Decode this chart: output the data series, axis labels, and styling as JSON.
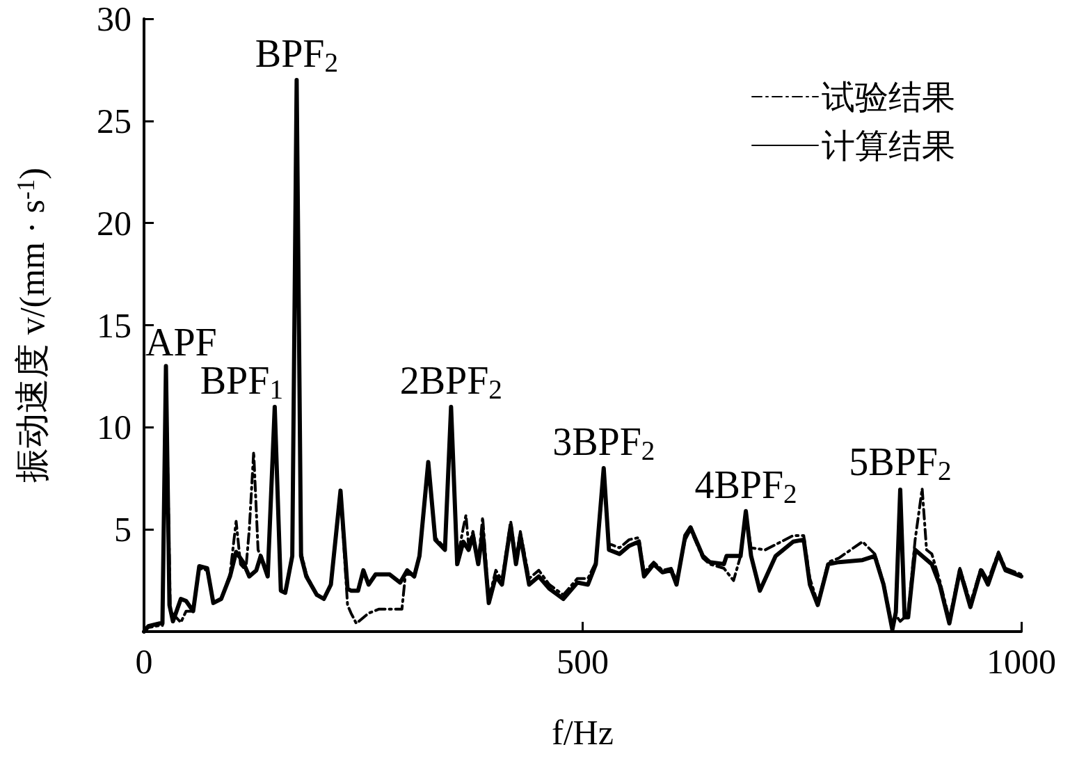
{
  "chart_data": {
    "type": "line",
    "xlabel": "f/Hz",
    "ylabel": "振动速度 v/(mm · s$^{-1}$)",
    "xlim": [
      0,
      1000
    ],
    "xticks": [
      0,
      500,
      1000
    ],
    "ylim": [
      0,
      30
    ],
    "yticks": [
      {
        "value": 0,
        "label": null
      },
      5,
      10,
      15,
      20,
      25,
      30
    ],
    "grid": false,
    "legend": "top right",
    "marker": "none",
    "series": [
      {
        "name": "试验结果",
        "color": "#000000",
        "line_style": "dashed",
        "x": [
          0,
          5,
          18,
          21,
          25,
          30,
          42,
          48,
          56,
          63,
          72,
          79,
          88,
          98,
          105,
          110,
          116,
          120,
          125,
          130,
          135,
          141,
          149,
          156,
          161,
          169,
          174,
          179,
          185,
          197,
          205,
          213,
          224,
          232,
          236,
          242,
          256,
          268,
          294,
          298,
          308,
          314,
          324,
          332,
          343,
          350,
          357,
          364,
          367,
          370,
          375,
          381,
          386,
          393,
          401,
          408,
          418,
          424,
          429,
          439,
          450,
          462,
          478,
          494,
          506,
          515,
          524,
          530,
          542,
          553,
          564,
          570,
          581,
          591,
          601,
          607,
          617,
          623,
          637,
          645,
          661,
          672,
          680,
          686,
          692,
          708,
          740,
          752,
          759,
          768,
          780,
          792,
          819,
          833,
          843,
          853,
          857,
          862,
          867,
          871,
          879,
          887,
          892,
          898,
          907,
          918,
          930,
          942,
          954,
          962,
          974,
          982,
          994,
          1000
        ],
        "values": [
          0,
          0.2,
          0.3,
          0.3,
          12.9,
          1,
          0.45,
          1.0,
          1.0,
          3.1,
          3.0,
          1.4,
          1.6,
          2.8,
          5.4,
          3.3,
          3.0,
          5.0,
          8.8,
          4.0,
          3.5,
          2.9,
          10.8,
          2.1,
          1.9,
          3.7,
          26.8,
          3.9,
          2.8,
          1.8,
          1.6,
          2.3,
          6.8,
          1.3,
          0.9,
          0.4,
          0.9,
          1.1,
          1.1,
          2.8,
          2.8,
          3.7,
          8.2,
          4.6,
          4.1,
          10.8,
          3.5,
          5.1,
          5.7,
          4.2,
          4.9,
          3.4,
          5.6,
          1.6,
          3.0,
          2.5,
          5.4,
          3.5,
          4.9,
          2.6,
          3.0,
          2.3,
          1.8,
          2.6,
          2.6,
          3.4,
          7.6,
          4.3,
          4.1,
          4.5,
          4.6,
          2.9,
          3.4,
          3.0,
          3.1,
          2.5,
          4.5,
          5.0,
          3.6,
          3.3,
          3.1,
          2.5,
          3.7,
          5.8,
          4.1,
          4.0,
          4.7,
          4.7,
          2.6,
          1.4,
          3.4,
          3.6,
          4.4,
          3.8,
          2.4,
          0.2,
          0.8,
          0.5,
          0.7,
          0.9,
          4.5,
          7.0,
          4.0,
          3.8,
          2.5,
          0.6,
          3.1,
          1.4,
          3.1,
          2.5,
          3.9,
          3.1,
          2.9,
          2.8
        ]
      },
      {
        "name": "计算结果",
        "color": "#000000",
        "line_style": "solid",
        "x": [
          0,
          5,
          18,
          21,
          25,
          29,
          33,
          42,
          48,
          56,
          63,
          72,
          79,
          88,
          98,
          105,
          113,
          120,
          128,
          133,
          141,
          149,
          156,
          161,
          169,
          174,
          179,
          185,
          197,
          205,
          213,
          224,
          232,
          236,
          244,
          250,
          256,
          264,
          280,
          292,
          300,
          308,
          314,
          324,
          332,
          343,
          350,
          357,
          364,
          370,
          375,
          381,
          386,
          393,
          401,
          408,
          418,
          424,
          429,
          439,
          450,
          462,
          478,
          494,
          506,
          515,
          524,
          530,
          542,
          553,
          564,
          570,
          581,
          591,
          601,
          607,
          617,
          623,
          637,
          645,
          661,
          664,
          680,
          686,
          692,
          702,
          720,
          740,
          752,
          759,
          768,
          780,
          792,
          819,
          833,
          843,
          853,
          857,
          862,
          867,
          871,
          879,
          887,
          898,
          907,
          918,
          930,
          942,
          954,
          962,
          974,
          982,
          994,
          1000
        ],
        "values": [
          0,
          0.27,
          0.4,
          0.4,
          13.0,
          1.3,
          0.5,
          1.6,
          1.5,
          1.0,
          3.2,
          3.1,
          1.4,
          1.6,
          2.7,
          3.9,
          3.4,
          2.7,
          3.0,
          3.7,
          2.7,
          11.0,
          2.0,
          1.9,
          3.7,
          27.0,
          3.7,
          2.7,
          1.8,
          1.6,
          2.3,
          6.9,
          2.1,
          2.0,
          2.0,
          3.0,
          2.3,
          2.8,
          2.8,
          2.4,
          3.0,
          2.7,
          3.7,
          8.3,
          4.5,
          4.0,
          11.0,
          3.3,
          4.4,
          4.0,
          4.7,
          3.3,
          4.9,
          1.4,
          2.7,
          2.3,
          5.2,
          3.3,
          4.7,
          2.3,
          2.7,
          2.1,
          1.6,
          2.4,
          2.3,
          3.3,
          8.0,
          4.0,
          3.8,
          4.2,
          4.4,
          2.7,
          3.3,
          2.9,
          3.0,
          2.3,
          4.7,
          5.1,
          3.7,
          3.4,
          3.3,
          3.7,
          3.7,
          5.9,
          3.7,
          2.0,
          3.7,
          4.4,
          4.5,
          2.3,
          1.3,
          3.3,
          3.4,
          3.5,
          3.7,
          2.3,
          0.1,
          0.95,
          6.95,
          0.7,
          0.7,
          4.0,
          3.7,
          3.3,
          2.3,
          0.4,
          3.0,
          1.2,
          3.0,
          2.3,
          3.8,
          3.0,
          2.8,
          2.7
        ]
      }
    ],
    "annotations": [
      {
        "text": "APF",
        "x": 25,
        "y": 13
      },
      {
        "text": "BPF$_{1}$",
        "x": 149,
        "y": 11
      },
      {
        "text": "BPF$_{2}$",
        "x": 174,
        "y": 27
      },
      {
        "text": "2BPF$_{2}$",
        "x": 350,
        "y": 11
      },
      {
        "text": "3BPF$_{2}$",
        "x": 524,
        "y": 8
      },
      {
        "text": "4BPF$_{2}$",
        "x": 686,
        "y": 5.9
      },
      {
        "text": "5BPF$_{2}$",
        "x": 862,
        "y": 7
      }
    ]
  }
}
